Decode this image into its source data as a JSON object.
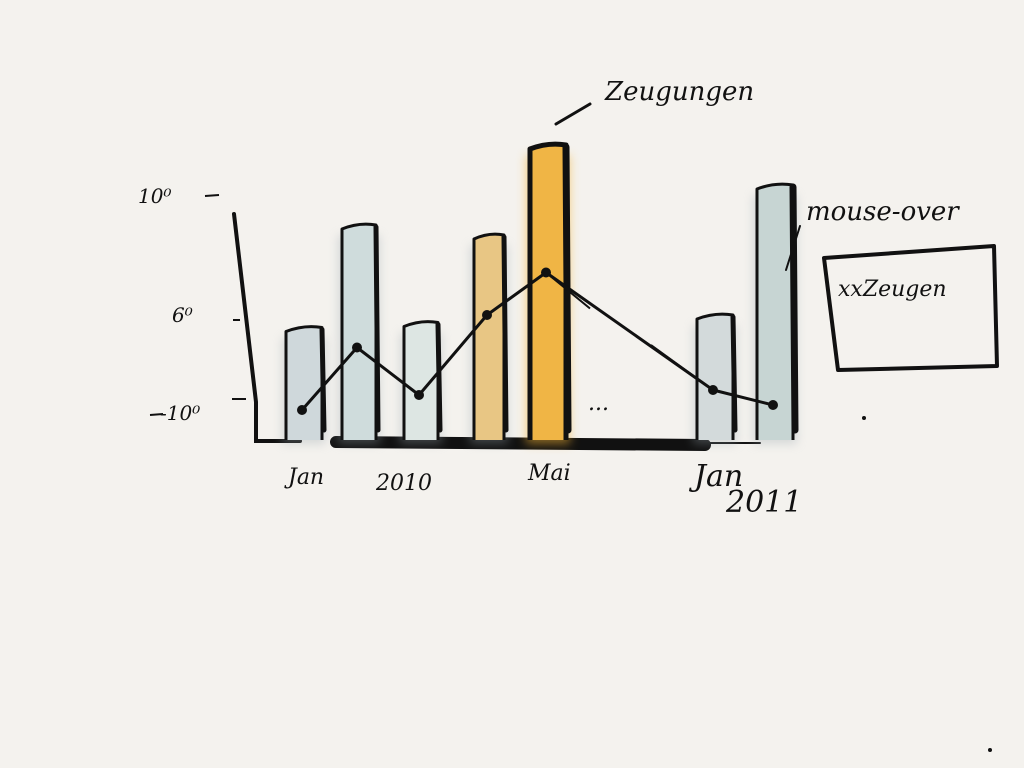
{
  "chart_data": {
    "type": "bar",
    "style": "hand-drawn sketch",
    "y_ticks": [
      "10⁰",
      "6⁰",
      "-10⁰"
    ],
    "x_labels": [
      "Jan",
      "2010",
      "Mai",
      "...",
      "Jan",
      "2011"
    ],
    "bars": [
      {
        "value": 0.45,
        "color": "#cfd8db",
        "highlight": false
      },
      {
        "value": 0.86,
        "color": "#cfdcdc",
        "highlight": false
      },
      {
        "value": 0.47,
        "color": "#dde6e3",
        "highlight": false
      },
      {
        "value": 0.82,
        "color": "#e8c684",
        "highlight": false
      },
      {
        "value": 1.18,
        "color": "#f0b545",
        "highlight": true
      },
      {
        "value": 0.5,
        "color": "#d3dadb",
        "highlight": false
      },
      {
        "value": 1.02,
        "color": "#c7d5d3",
        "highlight": false
      }
    ],
    "line": [
      0.12,
      0.37,
      0.18,
      0.5,
      0.67,
      0.2,
      0.14
    ],
    "ylim": [
      0,
      1.25
    ],
    "annotations": {
      "highlight_label": "Zeugungen",
      "hover_label": "mouse-over",
      "tooltip_text": "xxZeugen"
    },
    "colors": {
      "ink": "#111111",
      "highlight": "#f0b545",
      "neutral": "#cfd8db",
      "background": "#f4f2ee"
    }
  }
}
